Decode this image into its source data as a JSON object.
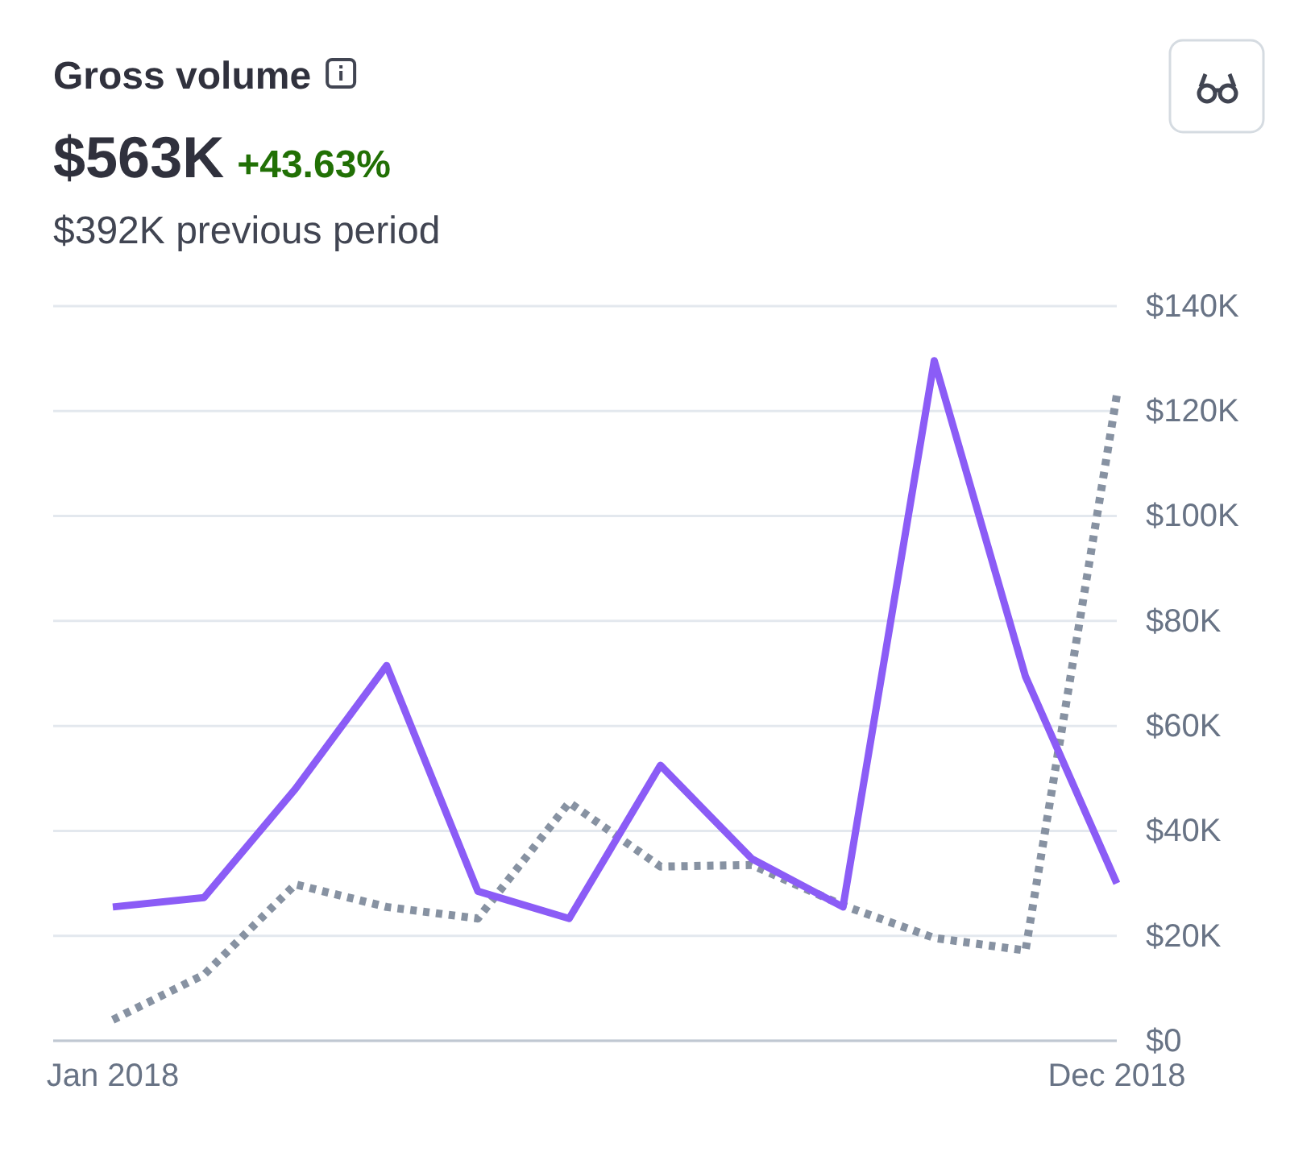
{
  "chart_data": {
    "type": "line",
    "title": "Gross volume",
    "subtitle": "$392K previous period",
    "annotations": [
      "$563K",
      "+43.63%"
    ],
    "categories": [
      "Jan 2018",
      null,
      null,
      null,
      null,
      null,
      null,
      null,
      null,
      null,
      null,
      "Dec 2018"
    ],
    "series": [
      {
        "color": "#8b5cf6",
        "line_style": "solid",
        "values": [
          25.5,
          27.3,
          48,
          71.5,
          28.5,
          23.3,
          52.5,
          34.7,
          25.5,
          129.6,
          69.4,
          30
        ]
      },
      {
        "color": "#8792a2",
        "line_style": "dotted",
        "values": [
          4,
          12.6,
          29.8,
          25.5,
          23.3,
          45.4,
          33.2,
          33.5,
          25.8,
          19.6,
          17.2,
          123
        ]
      }
    ],
    "ylim": [
      0,
      140
    ],
    "yticks": [
      {
        "value": 0,
        "label": "$0"
      },
      {
        "value": 20,
        "label": "$20K"
      },
      {
        "value": 40,
        "label": "$40K"
      },
      {
        "value": 60,
        "label": "$60K"
      },
      {
        "value": 80,
        "label": "$80K"
      },
      {
        "value": 100,
        "label": "$100K"
      },
      {
        "value": 120,
        "label": "$120K"
      },
      {
        "value": 140,
        "label": "$140K"
      }
    ],
    "grid": "y",
    "marker": "none"
  }
}
